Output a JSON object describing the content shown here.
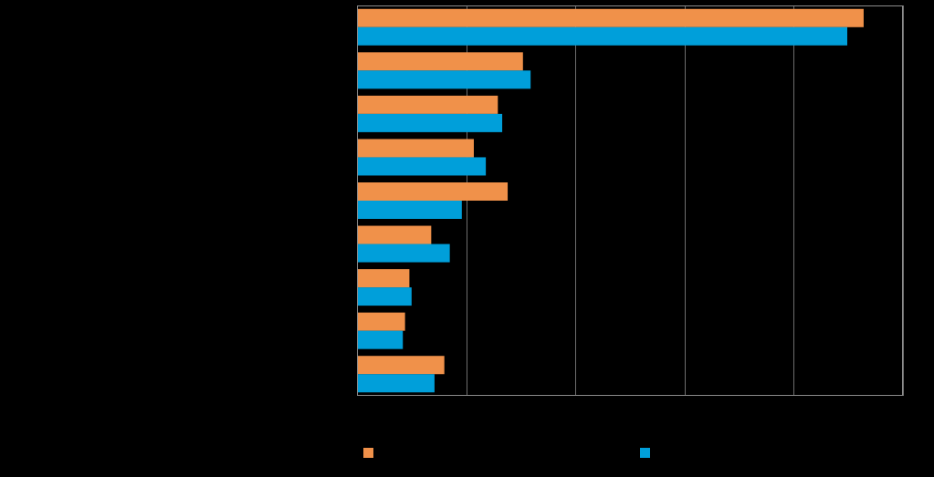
{
  "chart_data": {
    "type": "bar",
    "orientation": "horizontal",
    "categories": [
      "",
      "",
      "",
      "",
      "",
      "",
      "",
      "",
      ""
    ],
    "series": [
      {
        "name": "",
        "color": "#F0914A",
        "values": [
          46.4,
          15.2,
          12.9,
          10.7,
          13.8,
          6.8,
          4.8,
          4.4,
          8.0
        ]
      },
      {
        "name": "",
        "color": "#009FDA",
        "values": [
          44.9,
          15.9,
          13.3,
          11.8,
          9.6,
          8.5,
          5.0,
          4.2,
          7.1
        ]
      }
    ],
    "xlim": [
      0,
      50
    ],
    "x_gridlines": [
      0,
      10,
      20,
      30,
      40,
      50
    ],
    "grid": true,
    "legend_position": "bottom",
    "title": "",
    "xlabel": "",
    "ylabel": ""
  }
}
